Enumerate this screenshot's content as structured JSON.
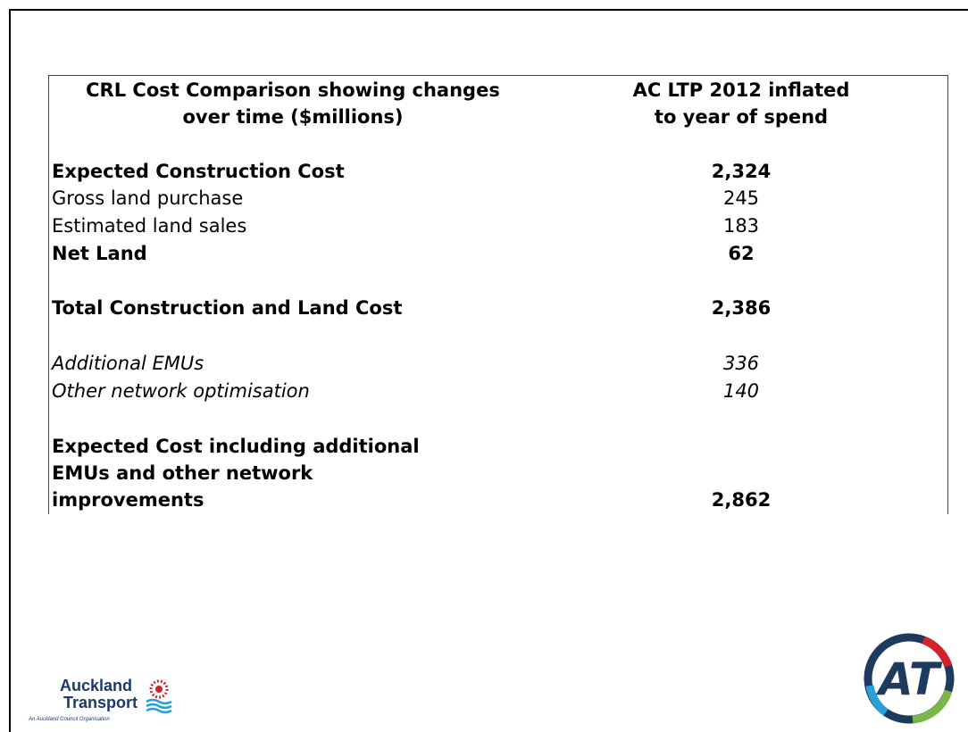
{
  "table": {
    "header": [
      [
        "CRL Cost Comparison showing changes",
        "over time ($millions)"
      ],
      [
        "AC LTP 2012 inflated",
        "to year of spend"
      ]
    ],
    "rows": [
      [
        [
          "Expected Construction Cost"
        ],
        "2,324"
      ],
      [
        [
          "Gross land purchase"
        ],
        "245"
      ],
      [
        [
          "Estimated land sales"
        ],
        "183"
      ],
      [
        [
          "Net Land"
        ],
        "62"
      ],
      [
        [
          "Total Construction and Land Cost"
        ],
        "2,386"
      ],
      [
        [
          "Additional EMUs"
        ],
        "336"
      ],
      [
        [
          "Other network optimisation"
        ],
        "140"
      ],
      [
        [
          "Expected Cost including additional",
          "EMUs and other network",
          "improvements"
        ],
        "2,862"
      ]
    ]
  },
  "logos": {
    "left": {
      "name": [
        "Auckland",
        "Transport"
      ],
      "tagline": "An Auckland Council Organisation"
    },
    "right": {
      "text": "AT"
    }
  }
}
